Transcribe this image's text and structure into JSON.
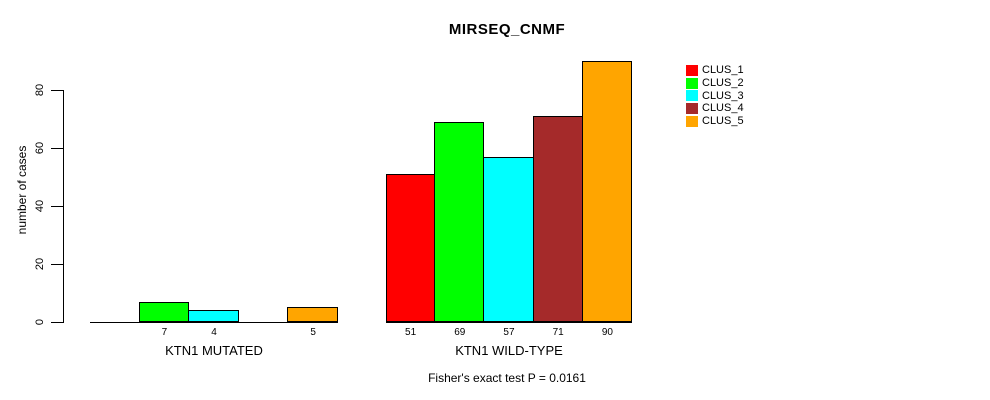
{
  "chart_data": {
    "type": "bar",
    "title": "MIRSEQ_CNMF",
    "ylabel": "number of cases",
    "xlabel": "",
    "categories": [
      "KTN1 MUTATED",
      "KTN1 WILD-TYPE"
    ],
    "series": [
      {
        "name": "CLUS_1",
        "color": "#FF0000",
        "values": [
          0,
          51
        ]
      },
      {
        "name": "CLUS_2",
        "color": "#00FF00",
        "values": [
          7,
          69
        ]
      },
      {
        "name": "CLUS_3",
        "color": "#00FFFF",
        "values": [
          4,
          57
        ]
      },
      {
        "name": "CLUS_4",
        "color": "#A52A2A",
        "values": [
          0,
          71
        ]
      },
      {
        "name": "CLUS_5",
        "color": "#FFA500",
        "values": [
          5,
          90
        ]
      }
    ],
    "bar_value_labels": [
      [
        "",
        "7",
        "4",
        "",
        "5"
      ],
      [
        "51",
        "69",
        "57",
        "71",
        "90"
      ]
    ],
    "yticks": [
      "0",
      "20",
      "40",
      "60",
      "80"
    ],
    "ytick_values": [
      0,
      20,
      40,
      60,
      80
    ],
    "ylim": [
      0,
      93
    ],
    "grid": false,
    "bar_border_color": "#000000",
    "legend_position": "right",
    "annotation": "Fisher's exact test P = 0.0161"
  }
}
